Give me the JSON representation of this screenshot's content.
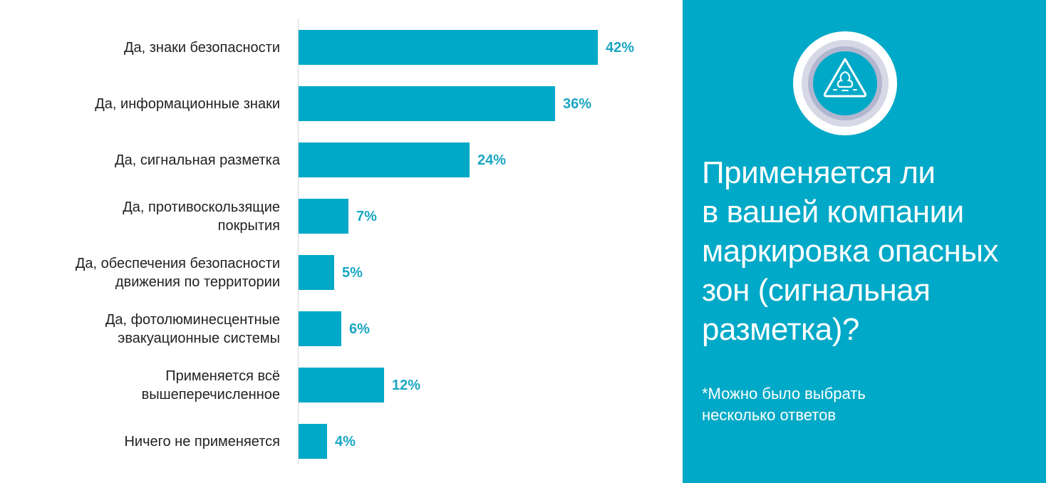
{
  "colors": {
    "bar": "#00a9c7",
    "panel": "#00a9c7",
    "value_text": "#1aa6c4",
    "label_text": "#222222",
    "axis": "#d9d9d9"
  },
  "chart_data": {
    "type": "bar",
    "orientation": "horizontal",
    "categories": [
      [
        "Да, знаки безопасности"
      ],
      [
        "Да, информационные знаки"
      ],
      [
        "Да, сигнальная разметка"
      ],
      [
        "Да, противоскользящие",
        "покрытия"
      ],
      [
        "Да, обеспечения безопасности",
        "движения по территории"
      ],
      [
        "Да, фотолюминесцентные",
        "эвакуационные системы"
      ],
      [
        "Применяется всё",
        "вышеперечисленное"
      ],
      [
        "Ничего не применяется"
      ]
    ],
    "values": [
      42,
      36,
      24,
      7,
      5,
      6,
      12,
      4
    ],
    "value_labels": [
      "42%",
      "36%",
      "24%",
      "7%",
      "5%",
      "6%",
      "12%",
      "4%"
    ],
    "grid": false,
    "legend": "none"
  },
  "panel": {
    "icon": "hazard-warning-triangle-icon",
    "question_lines": [
      "Применяется ли",
      "в вашей компании",
      "маркировка опасных",
      "зон (сигнальная",
      "разметка)?"
    ],
    "note_lines": [
      "*Можно было выбрать",
      "несколько ответов"
    ]
  }
}
